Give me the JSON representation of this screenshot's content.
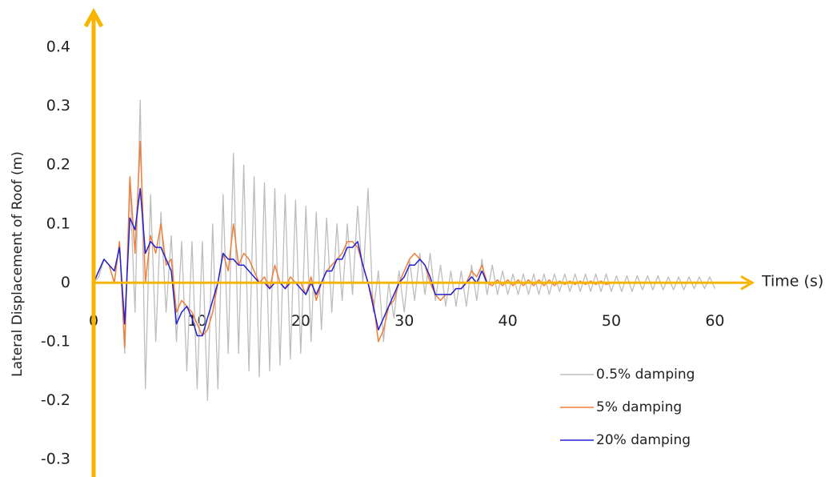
{
  "chart_data": {
    "type": "line",
    "y_label": "Lateral Displacement of Roof (m)",
    "x_label": "Time (s)",
    "xlim": [
      0,
      63.6
    ],
    "ylim": [
      -0.33,
      0.46
    ],
    "xticks": [
      0,
      10,
      20,
      30,
      40,
      50,
      60
    ],
    "yticks": [
      -0.3,
      -0.2,
      -0.1,
      0,
      0.1,
      0.2,
      0.3,
      0.4
    ],
    "grid": false,
    "legend": "lower right",
    "axis_color": "#f7b500",
    "x": [
      0,
      0.5,
      1,
      1.5,
      2,
      2.5,
      3,
      3.5,
      4,
      4.5,
      5,
      5.5,
      6,
      6.5,
      7,
      7.5,
      8,
      8.5,
      9,
      9.5,
      10,
      10.5,
      11,
      11.5,
      12,
      12.5,
      13,
      13.5,
      14,
      14.5,
      15,
      15.5,
      16,
      16.5,
      17,
      17.5,
      18,
      18.5,
      19,
      19.5,
      20,
      20.5,
      21,
      21.5,
      22,
      22.5,
      23,
      23.5,
      24,
      24.5,
      25,
      25.5,
      26,
      26.5,
      27,
      27.5,
      28,
      28.5,
      29,
      29.5,
      30,
      30.5,
      31,
      31.5,
      32,
      32.5,
      33,
      33.5,
      34,
      34.5,
      35,
      35.5,
      36,
      36.5,
      37,
      37.5,
      38,
      38.5,
      39,
      39.5,
      40,
      40.5,
      41,
      41.5,
      42,
      42.5,
      43,
      43.5,
      44,
      44.5,
      45,
      45.5,
      46,
      46.5,
      47,
      47.5,
      48,
      48.5,
      49,
      49.5,
      50,
      50.5,
      51,
      51.5,
      52,
      52.5,
      53,
      53.5,
      54,
      54.5,
      55,
      55.5,
      56,
      56.5,
      57,
      57.5,
      58,
      58.5,
      59,
      59.5,
      60
    ],
    "series": [
      {
        "name": "0.5% damping",
        "color": "#bdbdbd",
        "values": [
          0,
          0.01,
          0.04,
          0.03,
          0,
          0.07,
          -0.12,
          0.17,
          -0.05,
          0.31,
          -0.18,
          0.15,
          -0.1,
          0.12,
          -0.05,
          0.08,
          -0.1,
          0.07,
          -0.15,
          0.07,
          -0.18,
          0.07,
          -0.2,
          0.1,
          -0.18,
          0.15,
          -0.12,
          0.22,
          -0.12,
          0.2,
          -0.15,
          0.18,
          -0.16,
          0.17,
          -0.15,
          0.16,
          -0.14,
          0.15,
          -0.13,
          0.14,
          -0.12,
          0.13,
          -0.1,
          0.12,
          -0.08,
          0.11,
          -0.05,
          0.1,
          -0.03,
          0.1,
          -0.02,
          0.13,
          0,
          0.16,
          -0.05,
          0.02,
          -0.1,
          0,
          -0.06,
          0.02,
          -0.05,
          0.04,
          -0.03,
          0.05,
          -0.02,
          0.05,
          -0.03,
          0.03,
          -0.04,
          0.02,
          -0.04,
          0.02,
          -0.04,
          0.03,
          -0.03,
          0.04,
          -0.02,
          0.03,
          -0.02,
          0.02,
          -0.02,
          0.015,
          -0.02,
          0.015,
          -0.02,
          0.015,
          -0.02,
          0.015,
          -0.02,
          0.015,
          -0.015,
          0.015,
          -0.015,
          0.015,
          -0.015,
          0.015,
          -0.015,
          0.015,
          -0.015,
          0.015,
          -0.015,
          0.012,
          -0.015,
          0.012,
          -0.015,
          0.012,
          -0.012,
          0.012,
          -0.012,
          0.012,
          -0.012,
          0.01,
          -0.012,
          0.01,
          -0.012,
          0.01,
          -0.01,
          0.01,
          -0.01,
          0.01,
          -0.01
        ]
      },
      {
        "name": "5% damping",
        "color": "#f07f3c",
        "values": [
          0,
          0.02,
          0.04,
          0.03,
          0,
          0.07,
          -0.11,
          0.18,
          0.05,
          0.24,
          0,
          0.08,
          0.05,
          0.1,
          0.03,
          0.04,
          -0.05,
          -0.03,
          -0.04,
          -0.05,
          -0.07,
          -0.09,
          -0.08,
          -0.05,
          0,
          0.05,
          0.02,
          0.1,
          0.03,
          0.05,
          0.04,
          0.02,
          0,
          0.01,
          -0.01,
          0.03,
          0,
          -0.01,
          0.01,
          0,
          0,
          -0.02,
          0.01,
          -0.03,
          0,
          0.02,
          0.03,
          0.04,
          0.05,
          0.07,
          0.07,
          0.06,
          0.03,
          0,
          -0.03,
          -0.1,
          -0.08,
          -0.04,
          -0.03,
          0,
          0.02,
          0.04,
          0.05,
          0.04,
          0.03,
          0,
          -0.02,
          -0.03,
          -0.02,
          -0.02,
          -0.01,
          -0.01,
          0,
          0.02,
          0.01,
          0.03,
          0,
          -0.005,
          0.005,
          -0.005,
          0.005,
          -0.005,
          0.005,
          -0.005,
          0.005,
          -0.005,
          0.005,
          -0.005,
          0.005,
          -0.005,
          0.003,
          -0.003,
          0.003,
          -0.003,
          0.003,
          -0.003,
          0.003,
          -0.003,
          0.003,
          -0.003,
          0,
          0,
          0,
          0,
          0,
          0,
          0,
          0,
          0,
          0,
          0,
          0,
          0,
          0,
          0,
          0,
          0,
          0,
          0,
          0,
          0
        ]
      },
      {
        "name": "20% damping",
        "color": "#2222d4",
        "values": [
          0,
          0.02,
          0.04,
          0.03,
          0.02,
          0.06,
          -0.07,
          0.11,
          0.09,
          0.16,
          0.05,
          0.07,
          0.06,
          0.06,
          0.04,
          0.02,
          -0.07,
          -0.05,
          -0.04,
          -0.06,
          -0.09,
          -0.09,
          -0.06,
          -0.03,
          0,
          0.05,
          0.04,
          0.04,
          0.03,
          0.03,
          0.02,
          0.01,
          0,
          0,
          -0.01,
          0,
          0,
          -0.01,
          0,
          0,
          -0.01,
          -0.02,
          0,
          -0.02,
          0,
          0.02,
          0.02,
          0.04,
          0.04,
          0.06,
          0.06,
          0.07,
          0.03,
          0,
          -0.04,
          -0.08,
          -0.06,
          -0.04,
          -0.02,
          0,
          0.01,
          0.03,
          0.03,
          0.04,
          0.03,
          0.01,
          -0.02,
          -0.02,
          -0.02,
          -0.02,
          -0.01,
          -0.01,
          0,
          0.01,
          0,
          0.02,
          0,
          0,
          0,
          0,
          0,
          0,
          0,
          0,
          0,
          0,
          0,
          0,
          0,
          0,
          0,
          0,
          0,
          0,
          0,
          0,
          0,
          0,
          0,
          0,
          0,
          0,
          0,
          0,
          0,
          0,
          0,
          0,
          0,
          0,
          0,
          0,
          0,
          0,
          0,
          0,
          0,
          0,
          0,
          0,
          0
        ]
      }
    ]
  }
}
